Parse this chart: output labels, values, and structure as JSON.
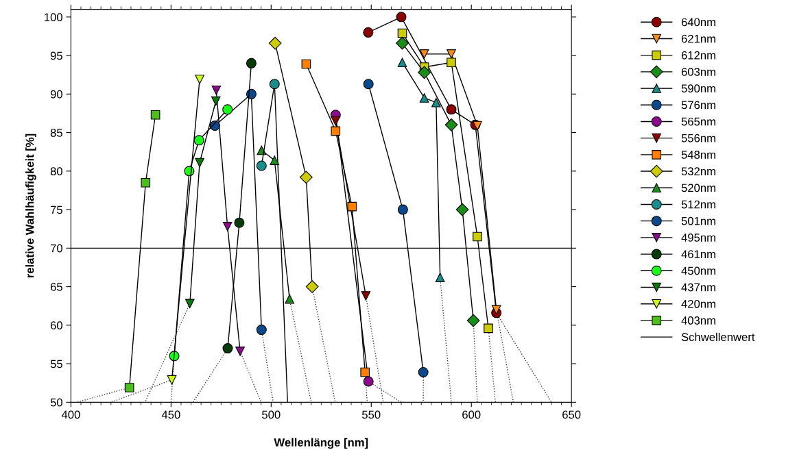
{
  "chart_data": {
    "type": "line",
    "xlabel": "Wellenlänge [nm]",
    "ylabel": "relative Wahlhäufigkeit [%]",
    "xlim": [
      400,
      650
    ],
    "xticks": [
      400,
      450,
      500,
      550,
      600,
      650
    ],
    "ylim": [
      50,
      101
    ],
    "yticks": [
      50,
      55,
      60,
      65,
      70,
      75,
      80,
      85,
      90,
      95,
      100
    ],
    "grid": false,
    "legend": "right",
    "line_style": "solid",
    "ref_lines": [
      {
        "axis": "y",
        "value": 70,
        "label": "Schwellenwert",
        "color": "#000000"
      }
    ],
    "series": [
      {
        "name": "640nm",
        "color": "#8b0000",
        "marker": "circle",
        "x": [
          548.5,
          565,
          590,
          602,
          612.5
        ],
        "values": [
          98,
          100,
          88,
          86,
          61.6
        ]
      },
      {
        "name": "621nm",
        "color": "#ff8c1a",
        "marker": "triangle_down",
        "x": [
          576.5,
          590,
          603,
          612.5
        ],
        "values": [
          95.2,
          95.2,
          85.9,
          62
        ]
      },
      {
        "name": "612nm",
        "color": "#cccc00",
        "marker": "square",
        "x": [
          565.5,
          576.5,
          590,
          603,
          608.5
        ],
        "values": [
          97.9,
          93.5,
          94.1,
          71.5,
          59.6
        ]
      },
      {
        "name": "603nm",
        "color": "#1a8c1a",
        "marker": "diamond",
        "x": [
          565.5,
          576.5,
          590,
          595.5,
          601
        ],
        "values": [
          96.6,
          92.8,
          86,
          75,
          60.6
        ]
      },
      {
        "name": "590nm",
        "color": "#1a8c8c",
        "marker": "triangle",
        "x": [
          565.5,
          576.5,
          582.4,
          584.4
        ],
        "values": [
          94.1,
          89.5,
          88.9,
          66.2
        ]
      },
      {
        "name": "576nm",
        "color": "#0a4a8c",
        "marker": "circle",
        "x": [
          548.6,
          565.8,
          576
        ],
        "values": [
          91.3,
          75,
          53.9
        ]
      },
      {
        "name": "565nm",
        "color": "#8c0a8c",
        "marker": "circle",
        "x": [
          532.2,
          548.6
        ],
        "values": [
          87.3,
          52.7
        ]
      },
      {
        "name": "556nm",
        "color": "#8b0000",
        "marker": "triangle_down",
        "x": [
          532.2,
          547.3
        ],
        "values": [
          86.5,
          63.8
        ]
      },
      {
        "name": "548nm",
        "color": "#ff8000",
        "marker": "square",
        "x": [
          517.5,
          532.2,
          540.4,
          546.9
        ],
        "values": [
          93.9,
          85.2,
          75.4,
          53.9
        ]
      },
      {
        "name": "532nm",
        "color": "#cccc00",
        "marker": "diamond",
        "x": [
          502,
          517.5,
          520.5
        ],
        "values": [
          96.6,
          79.2,
          65
        ]
      },
      {
        "name": "520nm",
        "color": "#1a8c1a",
        "marker": "triangle",
        "x": [
          495.2,
          501.7,
          509.2
        ],
        "values": [
          82.7,
          81.4,
          63.4
        ]
      },
      {
        "name": "512nm",
        "color": "#1a8c8c",
        "marker": "circle",
        "x": [
          495.2,
          501.7
        ],
        "values": [
          80.7,
          91.3
        ]
      },
      {
        "name": "501nm",
        "color": "#0a4a8c",
        "marker": "circle",
        "x": [
          471.9,
          490.1,
          495.2
        ],
        "values": [
          85.9,
          90,
          59.4
        ]
      },
      {
        "name": "495nm",
        "color": "#8c0a8c",
        "marker": "triangle_down",
        "x": [
          472.6,
          478.2,
          484.5
        ],
        "values": [
          90.5,
          72.8,
          56.6
        ]
      },
      {
        "name": "461nm",
        "color": "#0a3a0a",
        "marker": "circle",
        "x": [
          490.1,
          484.1,
          478.3
        ],
        "values": [
          94,
          73.3,
          57
        ]
      },
      {
        "name": "450nm",
        "color": "#1aff1a",
        "marker": "circle",
        "x": [
          478.2,
          464,
          459.1,
          451.6
        ],
        "values": [
          88,
          84,
          80,
          56
        ]
      },
      {
        "name": "437nm",
        "color": "#0a7a0a",
        "marker": "triangle_down",
        "x": [
          472.4,
          464.3,
          459.4
        ],
        "values": [
          89.1,
          81.1,
          62.8
        ]
      },
      {
        "name": "420nm",
        "color": "#ccff1a",
        "marker": "triangle_down",
        "x": [
          464.3,
          450.4
        ],
        "values": [
          91.9,
          52.9
        ]
      },
      {
        "name": "403nm",
        "color": "#4cc01a",
        "marker": "square",
        "x": [
          442.2,
          437.3,
          429.2
        ],
        "values": [
          87.3,
          78.5,
          51.9
        ]
      },
      {
        "color": "#404040",
        "marker": "none",
        "line_style": "dotted",
        "x": [
          612.5,
          640
        ],
        "values": [
          61.6,
          50
        ]
      },
      {
        "color": "#404040",
        "marker": "none",
        "line_style": "dotted",
        "x": [
          612.5,
          621
        ],
        "values": [
          62,
          50
        ]
      },
      {
        "color": "#404040",
        "marker": "none",
        "line_style": "dotted",
        "x": [
          608.5,
          612
        ],
        "values": [
          59.6,
          50
        ]
      },
      {
        "color": "#404040",
        "marker": "none",
        "line_style": "dotted",
        "x": [
          601,
          603
        ],
        "values": [
          60.6,
          50
        ]
      },
      {
        "color": "#404040",
        "marker": "none",
        "line_style": "dotted",
        "x": [
          584.4,
          590
        ],
        "values": [
          66.2,
          50
        ]
      },
      {
        "color": "#404040",
        "marker": "none",
        "line_style": "dotted",
        "x": [
          576,
          576
        ],
        "values": [
          53.9,
          50
        ]
      },
      {
        "color": "#404040",
        "marker": "none",
        "line_style": "dotted",
        "x": [
          548.6,
          565
        ],
        "values": [
          52.7,
          50
        ]
      },
      {
        "color": "#404040",
        "marker": "none",
        "line_style": "dotted",
        "x": [
          547.3,
          556
        ],
        "values": [
          63.8,
          50
        ]
      },
      {
        "color": "#404040",
        "marker": "none",
        "line_style": "dotted",
        "x": [
          546.9,
          548
        ],
        "values": [
          53.9,
          50
        ]
      },
      {
        "color": "#404040",
        "marker": "none",
        "line_style": "dotted",
        "x": [
          520.5,
          532
        ],
        "values": [
          65,
          50
        ]
      },
      {
        "color": "#404040",
        "marker": "none",
        "line_style": "dotted",
        "x": [
          509.2,
          520
        ],
        "values": [
          63.4,
          50
        ]
      },
      {
        "color": "#000000",
        "marker": "none",
        "line_style": "solid",
        "x": [
          501.7,
          508.2
        ],
        "values": [
          91.3,
          50
        ]
      },
      {
        "color": "#404040",
        "marker": "none",
        "line_style": "dotted",
        "x": [
          495.2,
          501
        ],
        "values": [
          59.4,
          50
        ]
      },
      {
        "color": "#404040",
        "marker": "none",
        "line_style": "dotted",
        "x": [
          484.5,
          495
        ],
        "values": [
          56.6,
          50
        ]
      },
      {
        "color": "#404040",
        "marker": "none",
        "line_style": "dotted",
        "x": [
          478.3,
          461
        ],
        "values": [
          57,
          50
        ]
      },
      {
        "color": "#404040",
        "marker": "none",
        "line_style": "dotted",
        "x": [
          451.6,
          450
        ],
        "values": [
          56,
          50
        ]
      },
      {
        "color": "#404040",
        "marker": "none",
        "line_style": "dotted",
        "x": [
          459.4,
          437
        ],
        "values": [
          62.8,
          50
        ]
      },
      {
        "color": "#404040",
        "marker": "none",
        "line_style": "dotted",
        "x": [
          450.4,
          420
        ],
        "values": [
          52.9,
          50
        ]
      },
      {
        "color": "#404040",
        "marker": "none",
        "line_style": "dotted",
        "x": [
          429.2,
          403
        ],
        "values": [
          51.9,
          50
        ]
      }
    ]
  }
}
